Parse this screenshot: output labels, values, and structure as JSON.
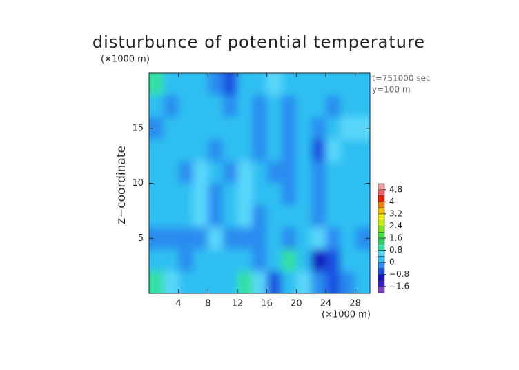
{
  "chart_data": {
    "type": "contour",
    "title": "disturbunce of potential temperature",
    "y_unit_label": "(×1000 m)",
    "x_unit_label": "(×1000 m)",
    "annotations": [
      "t=751000 sec",
      "y=100 m"
    ],
    "y_label": "z−coordinate",
    "xlim": [
      0,
      30
    ],
    "ylim": [
      0,
      20
    ],
    "xticks": [
      4,
      8,
      12,
      16,
      20,
      24,
      28
    ],
    "yticks": [
      5,
      10,
      15
    ],
    "values": [
      [
        0.9,
        0.3,
        0.2,
        0.3,
        -0.3,
        -0.6,
        0.1,
        0.2,
        0.7,
        0.3,
        0.1,
        0.2,
        0.3,
        0.2,
        0.3
      ],
      [
        0.3,
        -0.2,
        0.1,
        0.2,
        0.1,
        -0.2,
        0.3,
        -0.3,
        0.3,
        -0.2,
        0.2,
        0.1,
        -0.2,
        0.3,
        0.2
      ],
      [
        -0.1,
        0.2,
        0.3,
        0.1,
        0.2,
        0.3,
        0.1,
        -0.3,
        0.2,
        -0.4,
        0.2,
        -0.2,
        0.3,
        0.5,
        0.4
      ],
      [
        0.2,
        0.1,
        0.3,
        0.2,
        -0.2,
        0.1,
        0.2,
        -0.4,
        0.1,
        -0.3,
        0.3,
        -0.5,
        0.4,
        0.2,
        0.3
      ],
      [
        0.1,
        0.2,
        -0.2,
        0.5,
        0.3,
        -0.3,
        0.4,
        0.2,
        -0.2,
        -0.3,
        0.1,
        -0.3,
        0.3,
        0.1,
        0.2
      ],
      [
        0.2,
        0.3,
        0.1,
        0.4,
        -0.4,
        0.2,
        0.5,
        0.1,
        0.2,
        -0.2,
        0.2,
        -0.4,
        0.3,
        0.2,
        0.1
      ],
      [
        0.3,
        0.1,
        0.2,
        0.5,
        -0.3,
        0.3,
        0.4,
        -0.2,
        0.2,
        0.3,
        0.3,
        -0.3,
        0.1,
        0.2,
        0.3
      ],
      [
        -0.2,
        -0.4,
        -0.3,
        -0.2,
        0.7,
        -0.3,
        -0.4,
        -0.2,
        0.3,
        -0.3,
        0.2,
        0.5,
        -0.2,
        0.3,
        -0.3
      ],
      [
        0.3,
        0.2,
        -0.3,
        0.3,
        0.1,
        0.2,
        0.3,
        -0.3,
        0.2,
        0.9,
        0.3,
        -0.9,
        -0.5,
        0.2,
        0.1
      ],
      [
        0.9,
        0.4,
        0.3,
        0.1,
        0.3,
        0.2,
        0.9,
        0.4,
        -0.5,
        0.3,
        0.4,
        -0.3,
        -0.6,
        -0.3,
        0.2
      ]
    ],
    "levels": [
      -2.0,
      -1.6,
      -1.2,
      -0.8,
      -0.4,
      0,
      0.4,
      0.8,
      1.2,
      1.6,
      2.0,
      2.4,
      2.8,
      3.2,
      3.6,
      4.0,
      4.4,
      4.8,
      5.2
    ],
    "colors": [
      "#7f3fbf",
      "#3a1fd0",
      "#1414c0",
      "#1e50e0",
      "#2a8cf0",
      "#2ec0f2",
      "#5ad8fa",
      "#30e0a0",
      "#30d060",
      "#40e040",
      "#80e020",
      "#c0f000",
      "#f0f000",
      "#f0c000",
      "#f08000",
      "#f02000",
      "#f06060",
      "#f0a0a0"
    ],
    "colorbar_ticks": [
      {
        "value": 4.8,
        "label": "4.8"
      },
      4,
      3.2,
      2.4,
      1.6,
      0.8,
      0,
      {
        "value": -0.8,
        "label": "−0.8"
      },
      {
        "value": -1.6,
        "label": "−1.6"
      }
    ]
  }
}
